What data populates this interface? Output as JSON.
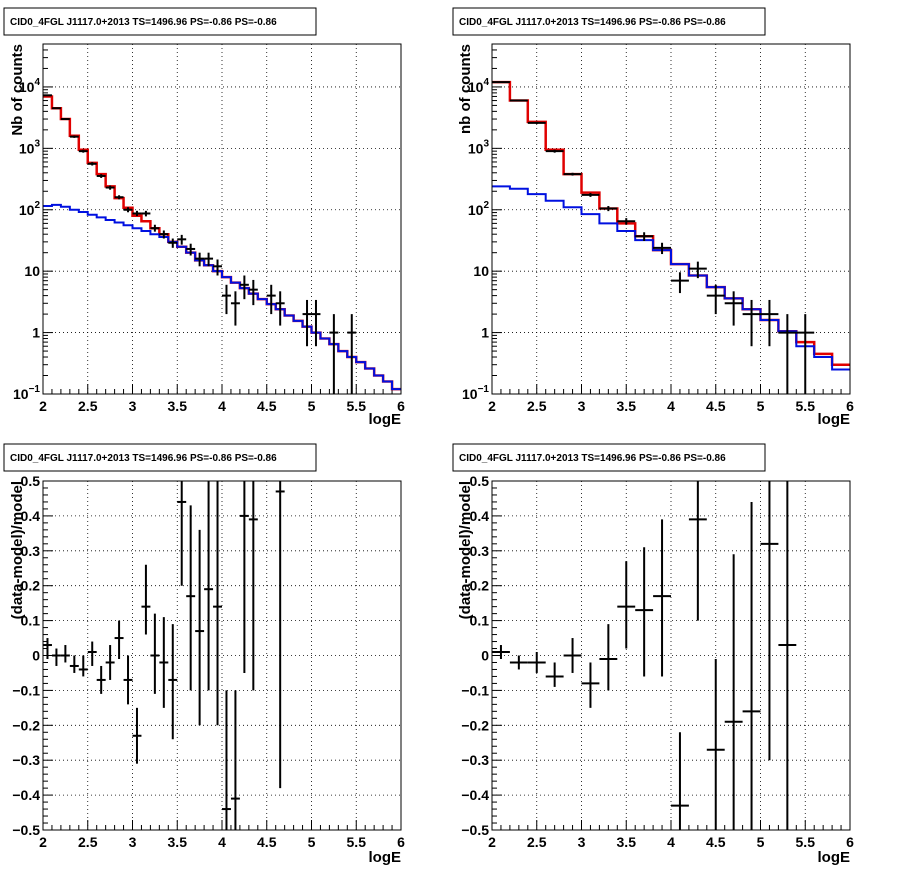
{
  "chart_data": [
    {
      "type": "line",
      "title": "CID0_4FGL J1117.0+2013 TS=1496.96 PS=-0.86 PS=-0.86",
      "xlabel": "logE",
      "ylabel": "Nb of counts",
      "xlim": [
        2,
        6
      ],
      "ylim": [
        0.1,
        50000
      ],
      "yscale": "log",
      "grid": true,
      "xticks": [
        "2",
        "2.5",
        "3",
        "3.5",
        "4",
        "4.5",
        "5",
        "5.5",
        "6"
      ],
      "yticks": [
        {
          "v": 0.1,
          "m": "10",
          "e": "−1"
        },
        {
          "v": 1,
          "m": "1",
          "e": ""
        },
        {
          "v": 10,
          "m": "10",
          "e": ""
        },
        {
          "v": 100,
          "m": "10",
          "e": "2"
        },
        {
          "v": 1000,
          "m": "10",
          "e": "3"
        },
        {
          "v": 10000,
          "m": "10",
          "e": "4"
        }
      ],
      "bin_edges": [
        2.0,
        2.1,
        2.2,
        2.3,
        2.4,
        2.5,
        2.6,
        2.7,
        2.8,
        2.9,
        3.0,
        3.1,
        3.2,
        3.3,
        3.4,
        3.5,
        3.6,
        3.7,
        3.8,
        3.9,
        4.0,
        4.1,
        4.2,
        4.3,
        4.4,
        4.5,
        4.6,
        4.7,
        4.8,
        4.9,
        5.0,
        5.1,
        5.2,
        5.3,
        5.4,
        5.5,
        5.6,
        5.7,
        5.8,
        5.9,
        6.0
      ],
      "series": [
        {
          "values": [
            7000,
            4500,
            3000,
            1600,
            950,
            580,
            380,
            240,
            155,
            108,
            80,
            65,
            50,
            40,
            30,
            25,
            20,
            15,
            12.5,
            10,
            8,
            6.5,
            5.3,
            4.3,
            3.5,
            2.9,
            2.4,
            1.9,
            1.55,
            1.25,
            1.0,
            0.8,
            0.65,
            0.5,
            0.4,
            0.33,
            0.26,
            0.2,
            0.16,
            0.12
          ],
          "color": "#e00000"
        },
        {
          "values": [
            115,
            120,
            112,
            100,
            92,
            83,
            75,
            68,
            62,
            56,
            50,
            45,
            40,
            36,
            30,
            25,
            20,
            15,
            12.5,
            10,
            8,
            6.5,
            5.3,
            4.3,
            3.5,
            2.9,
            2.4,
            1.9,
            1.55,
            1.25,
            1.0,
            0.8,
            0.65,
            0.5,
            0.4,
            0.33,
            0.26,
            0.2,
            0.16,
            0.12
          ],
          "color": "#0010e0"
        }
      ],
      "points": [
        {
          "x": 2.05,
          "y": 7300,
          "lo": 7150,
          "hi": 7450
        },
        {
          "x": 2.15,
          "y": 4500,
          "lo": 4380,
          "hi": 4620
        },
        {
          "x": 2.25,
          "y": 3000,
          "lo": 2900,
          "hi": 3100
        },
        {
          "x": 2.35,
          "y": 1550,
          "lo": 1480,
          "hi": 1620
        },
        {
          "x": 2.45,
          "y": 900,
          "lo": 850,
          "hi": 950
        },
        {
          "x": 2.55,
          "y": 560,
          "lo": 525,
          "hi": 595
        },
        {
          "x": 2.65,
          "y": 355,
          "lo": 330,
          "hi": 380
        },
        {
          "x": 2.75,
          "y": 230,
          "lo": 212,
          "hi": 248
        },
        {
          "x": 2.85,
          "y": 160,
          "lo": 148,
          "hi": 172
        },
        {
          "x": 2.95,
          "y": 100,
          "lo": 91,
          "hi": 110
        },
        {
          "x": 3.05,
          "y": 87,
          "lo": 79,
          "hi": 96
        },
        {
          "x": 3.15,
          "y": 87,
          "lo": 78,
          "hi": 96
        },
        {
          "x": 3.25,
          "y": 50,
          "lo": 44,
          "hi": 57
        },
        {
          "x": 3.35,
          "y": 40,
          "lo": 34,
          "hi": 46
        },
        {
          "x": 3.45,
          "y": 29,
          "lo": 24,
          "hi": 34
        },
        {
          "x": 3.55,
          "y": 33,
          "lo": 27,
          "hi": 39
        },
        {
          "x": 3.65,
          "y": 23,
          "lo": 18,
          "hi": 28
        },
        {
          "x": 3.75,
          "y": 16,
          "lo": 12,
          "hi": 20
        },
        {
          "x": 3.85,
          "y": 16,
          "lo": 12,
          "hi": 20
        },
        {
          "x": 3.95,
          "y": 12,
          "lo": 8.5,
          "hi": 15.5
        },
        {
          "x": 4.05,
          "y": 4,
          "lo": 2,
          "hi": 6
        },
        {
          "x": 4.15,
          "y": 3,
          "lo": 1.3,
          "hi": 4.7
        },
        {
          "x": 4.25,
          "y": 6,
          "lo": 3.5,
          "hi": 8.5
        },
        {
          "x": 4.35,
          "y": 5,
          "lo": 2.8,
          "hi": 7.2
        },
        {
          "x": 4.55,
          "y": 4,
          "lo": 2,
          "hi": 6
        },
        {
          "x": 4.65,
          "y": 3,
          "lo": 1.3,
          "hi": 4.7
        },
        {
          "x": 5.05,
          "y": 2,
          "lo": 0.6,
          "hi": 3.4
        },
        {
          "x": 4.95,
          "y": 2,
          "lo": 0.6,
          "hi": 3.4
        },
        {
          "x": 5.25,
          "y": 1,
          "lo": 0.1,
          "hi": 2
        },
        {
          "x": 5.45,
          "y": 1,
          "lo": 0.1,
          "hi": 2
        }
      ],
      "point_halfwidth": 0.05
    },
    {
      "type": "line",
      "title": "CID0_4FGL J1117.0+2013 TS=1496.96 PS=-0.86 PS=-0.86",
      "xlabel": "logE",
      "ylabel": "nb of counts",
      "xlim": [
        2,
        6
      ],
      "ylim": [
        0.1,
        50000
      ],
      "yscale": "log",
      "grid": true,
      "xticks": [
        "2",
        "2.5",
        "3",
        "3.5",
        "4",
        "4.5",
        "5",
        "5.5",
        "6"
      ],
      "yticks": [
        {
          "v": 0.1,
          "m": "10",
          "e": "−1"
        },
        {
          "v": 1,
          "m": "1",
          "e": ""
        },
        {
          "v": 10,
          "m": "10",
          "e": ""
        },
        {
          "v": 100,
          "m": "10",
          "e": "2"
        },
        {
          "v": 1000,
          "m": "10",
          "e": "3"
        },
        {
          "v": 10000,
          "m": "10",
          "e": "4"
        }
      ],
      "bin_edges": [
        2.0,
        2.2,
        2.4,
        2.6,
        2.8,
        3.0,
        3.2,
        3.4,
        3.6,
        3.8,
        4.0,
        4.2,
        4.4,
        4.6,
        4.8,
        5.0,
        5.2,
        5.4,
        5.6,
        5.8,
        6.0
      ],
      "series": [
        {
          "values": [
            12000,
            6000,
            2700,
            950,
            380,
            190,
            105,
            60,
            37,
            22,
            13,
            8.5,
            5.5,
            3.6,
            2.4,
            1.6,
            1.05,
            0.7,
            0.45,
            0.3
          ],
          "color": "#e00000"
        },
        {
          "values": [
            240,
            220,
            180,
            140,
            110,
            85,
            60,
            45,
            32,
            22,
            13,
            8.5,
            5.5,
            3.6,
            2.4,
            1.6,
            1.05,
            0.6,
            0.4,
            0.25
          ],
          "color": "#0010e0"
        }
      ],
      "points": [
        {
          "x": 2.1,
          "y": 12000,
          "lo": 11780,
          "hi": 12220
        },
        {
          "x": 2.3,
          "y": 6000,
          "lo": 5850,
          "hi": 6150
        },
        {
          "x": 2.5,
          "y": 2600,
          "lo": 2500,
          "hi": 2700
        },
        {
          "x": 2.7,
          "y": 900,
          "lo": 850,
          "hi": 950
        },
        {
          "x": 2.9,
          "y": 380,
          "lo": 360,
          "hi": 400
        },
        {
          "x": 3.1,
          "y": 175,
          "lo": 162,
          "hi": 188
        },
        {
          "x": 3.3,
          "y": 105,
          "lo": 95,
          "hi": 115
        },
        {
          "x": 3.5,
          "y": 65,
          "lo": 57,
          "hi": 73
        },
        {
          "x": 3.7,
          "y": 37,
          "lo": 31,
          "hi": 43
        },
        {
          "x": 3.9,
          "y": 24,
          "lo": 19,
          "hi": 29
        },
        {
          "x": 4.1,
          "y": 7,
          "lo": 4.4,
          "hi": 9.6
        },
        {
          "x": 4.3,
          "y": 11,
          "lo": 7.7,
          "hi": 14.3
        },
        {
          "x": 4.5,
          "y": 4,
          "lo": 2,
          "hi": 6
        },
        {
          "x": 4.7,
          "y": 3,
          "lo": 1.3,
          "hi": 4.7
        },
        {
          "x": 4.9,
          "y": 2,
          "lo": 0.6,
          "hi": 3.4
        },
        {
          "x": 5.1,
          "y": 2,
          "lo": 0.6,
          "hi": 3.4
        },
        {
          "x": 5.3,
          "y": 1,
          "lo": 0.1,
          "hi": 2
        },
        {
          "x": 5.5,
          "y": 1,
          "lo": 0.1,
          "hi": 2
        }
      ],
      "point_halfwidth": 0.1
    },
    {
      "type": "scatter",
      "title": "CID0_4FGL J1117.0+2013 TS=1496.96 PS=-0.86 PS=-0.86",
      "xlabel": "logE",
      "ylabel": "(data-model)/model",
      "xlim": [
        2,
        6
      ],
      "ylim": [
        -0.5,
        0.5
      ],
      "grid": true,
      "xticks": [
        "2",
        "2.5",
        "3",
        "3.5",
        "4",
        "4.5",
        "5",
        "5.5",
        "6"
      ],
      "yticks": [
        {
          "v": -0.5,
          "m": "−0.5",
          "e": ""
        },
        {
          "v": -0.4,
          "m": "−0.4",
          "e": ""
        },
        {
          "v": -0.3,
          "m": "−0.3",
          "e": ""
        },
        {
          "v": -0.2,
          "m": "−0.2",
          "e": ""
        },
        {
          "v": -0.1,
          "m": "−0.1",
          "e": ""
        },
        {
          "v": 0,
          "m": "0",
          "e": ""
        },
        {
          "v": 0.1,
          "m": "0.1",
          "e": ""
        },
        {
          "v": 0.2,
          "m": "0.2",
          "e": ""
        },
        {
          "v": 0.3,
          "m": "0.3",
          "e": ""
        },
        {
          "v": 0.4,
          "m": "0.4",
          "e": ""
        },
        {
          "v": 0.5,
          "m": "0.5",
          "e": ""
        }
      ],
      "points": [
        {
          "x": 2.05,
          "y": 0.03,
          "lo": -0.01,
          "hi": 0.05
        },
        {
          "x": 2.15,
          "y": 0.0,
          "lo": -0.03,
          "hi": 0.02
        },
        {
          "x": 2.25,
          "y": 0.0,
          "lo": -0.02,
          "hi": 0.03
        },
        {
          "x": 2.35,
          "y": -0.03,
          "lo": -0.05,
          "hi": 0.0
        },
        {
          "x": 2.45,
          "y": -0.04,
          "lo": -0.06,
          "hi": 0.0
        },
        {
          "x": 2.55,
          "y": 0.01,
          "lo": -0.03,
          "hi": 0.04
        },
        {
          "x": 2.65,
          "y": -0.07,
          "lo": -0.11,
          "hi": -0.03
        },
        {
          "x": 2.75,
          "y": -0.02,
          "lo": -0.07,
          "hi": 0.03
        },
        {
          "x": 2.85,
          "y": 0.05,
          "lo": -0.01,
          "hi": 0.1
        },
        {
          "x": 2.95,
          "y": -0.07,
          "lo": -0.14,
          "hi": 0.0
        },
        {
          "x": 3.05,
          "y": -0.23,
          "lo": -0.31,
          "hi": -0.15
        },
        {
          "x": 3.15,
          "y": 0.14,
          "lo": 0.06,
          "hi": 0.26
        },
        {
          "x": 3.25,
          "y": 0.0,
          "lo": -0.11,
          "hi": 0.12
        },
        {
          "x": 3.35,
          "y": -0.02,
          "lo": -0.15,
          "hi": 0.11
        },
        {
          "x": 3.45,
          "y": -0.07,
          "lo": -0.24,
          "hi": 0.09
        },
        {
          "x": 3.55,
          "y": 0.44,
          "lo": 0.2,
          "hi": 0.5
        },
        {
          "x": 3.65,
          "y": 0.17,
          "lo": -0.1,
          "hi": 0.43
        },
        {
          "x": 3.75,
          "y": 0.07,
          "lo": -0.2,
          "hi": 0.36
        },
        {
          "x": 3.85,
          "y": 0.19,
          "lo": -0.1,
          "hi": 0.5
        },
        {
          "x": 3.95,
          "y": 0.14,
          "lo": -0.2,
          "hi": 0.5
        },
        {
          "x": 4.05,
          "y": -0.44,
          "lo": -0.5,
          "hi": -0.1
        },
        {
          "x": 4.15,
          "y": -0.41,
          "lo": -0.5,
          "hi": -0.1
        },
        {
          "x": 4.25,
          "y": 0.4,
          "lo": -0.05,
          "hi": 0.5
        },
        {
          "x": 4.35,
          "y": 0.39,
          "lo": -0.1,
          "hi": 0.5
        },
        {
          "x": 4.65,
          "y": 0.47,
          "lo": -0.38,
          "hi": 0.5
        }
      ],
      "point_halfwidth": 0.05
    },
    {
      "type": "scatter",
      "title": "CID0_4FGL J1117.0+2013 TS=1496.96 PS=-0.86 PS=-0.86",
      "xlabel": "logE",
      "ylabel": "(data-model)/model",
      "xlim": [
        2,
        6
      ],
      "ylim": [
        -0.5,
        0.5
      ],
      "grid": true,
      "xticks": [
        "2",
        "2.5",
        "3",
        "3.5",
        "4",
        "4.5",
        "5",
        "5.5",
        "6"
      ],
      "yticks": [
        {
          "v": -0.5,
          "m": "−0.5",
          "e": ""
        },
        {
          "v": -0.4,
          "m": "−0.4",
          "e": ""
        },
        {
          "v": -0.3,
          "m": "−0.3",
          "e": ""
        },
        {
          "v": -0.2,
          "m": "−0.2",
          "e": ""
        },
        {
          "v": -0.1,
          "m": "−0.1",
          "e": ""
        },
        {
          "v": 0,
          "m": "0",
          "e": ""
        },
        {
          "v": 0.1,
          "m": "0.1",
          "e": ""
        },
        {
          "v": 0.2,
          "m": "0.2",
          "e": ""
        },
        {
          "v": 0.3,
          "m": "0.3",
          "e": ""
        },
        {
          "v": 0.4,
          "m": "0.4",
          "e": ""
        },
        {
          "v": 0.5,
          "m": "0.5",
          "e": ""
        }
      ],
      "points": [
        {
          "x": 2.1,
          "y": 0.01,
          "lo": -0.01,
          "hi": 0.03
        },
        {
          "x": 2.3,
          "y": -0.02,
          "lo": -0.04,
          "hi": 0.0
        },
        {
          "x": 2.5,
          "y": -0.02,
          "lo": -0.05,
          "hi": 0.01
        },
        {
          "x": 2.7,
          "y": -0.06,
          "lo": -0.09,
          "hi": -0.02
        },
        {
          "x": 2.9,
          "y": 0.0,
          "lo": -0.05,
          "hi": 0.05
        },
        {
          "x": 3.1,
          "y": -0.08,
          "lo": -0.15,
          "hi": -0.02
        },
        {
          "x": 3.3,
          "y": -0.01,
          "lo": -0.1,
          "hi": 0.09
        },
        {
          "x": 3.5,
          "y": 0.14,
          "lo": 0.02,
          "hi": 0.27
        },
        {
          "x": 3.7,
          "y": 0.13,
          "lo": -0.06,
          "hi": 0.31
        },
        {
          "x": 3.9,
          "y": 0.17,
          "lo": -0.06,
          "hi": 0.39
        },
        {
          "x": 4.1,
          "y": -0.43,
          "lo": -0.5,
          "hi": -0.22
        },
        {
          "x": 4.3,
          "y": 0.39,
          "lo": 0.1,
          "hi": 0.5
        },
        {
          "x": 4.5,
          "y": -0.27,
          "lo": -0.5,
          "hi": -0.01
        },
        {
          "x": 4.7,
          "y": -0.19,
          "lo": -0.5,
          "hi": 0.29
        },
        {
          "x": 4.9,
          "y": -0.16,
          "lo": -0.5,
          "hi": 0.44
        },
        {
          "x": 5.1,
          "y": 0.32,
          "lo": -0.3,
          "hi": 0.5
        },
        {
          "x": 5.3,
          "y": 0.03,
          "lo": -0.5,
          "hi": 0.5
        }
      ],
      "point_halfwidth": 0.1
    }
  ]
}
